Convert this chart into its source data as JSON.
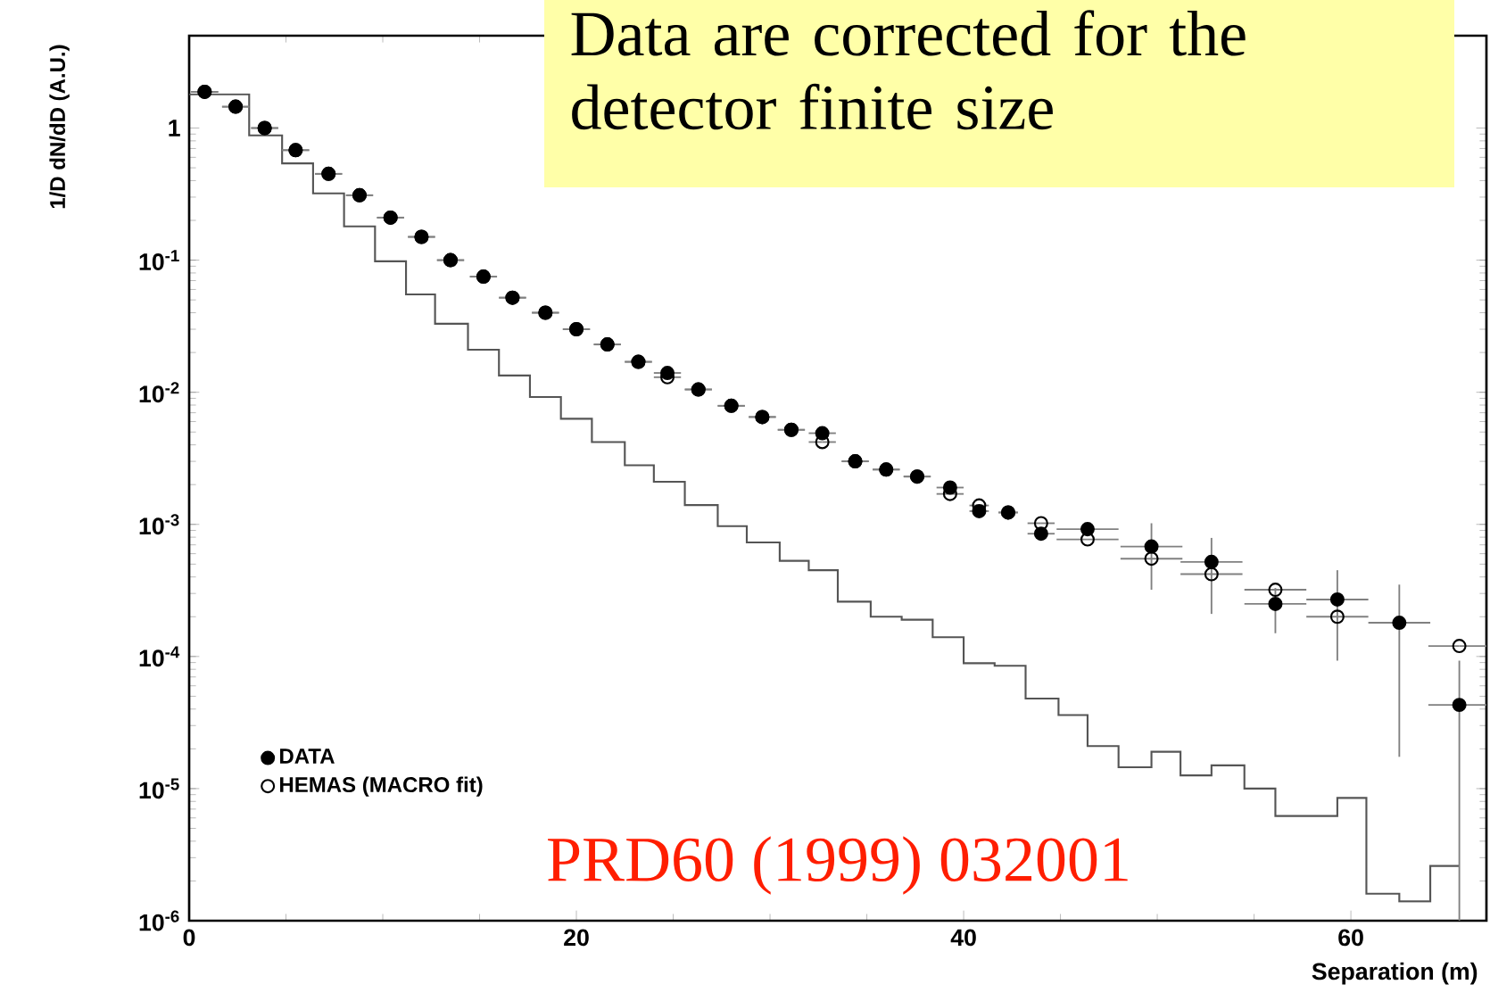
{
  "chart_data": {
    "type": "scatter",
    "xlabel": "Separation (m)",
    "ylabel": "1/D dN/dD (A.U.)",
    "annotations": [
      "Data are corrected for the detector finite size",
      "PRD60 (1999) 032001"
    ],
    "x": [
      0.8,
      2.4,
      3.9,
      5.5,
      7.2,
      8.8,
      10.4,
      12.0,
      13.5,
      15.2,
      16.7,
      18.4,
      20.0,
      21.6,
      23.2,
      24.7,
      26.3,
      28.0,
      29.6,
      31.1,
      32.7,
      34.4,
      36.0,
      37.6,
      39.3,
      40.8,
      42.3,
      44.0,
      46.4,
      49.7,
      52.8,
      56.1,
      59.3,
      62.5,
      65.6
    ],
    "series": [
      {
        "name": "DATA",
        "color": "#000000",
        "values": [
          1.88,
          1.45,
          1.0,
          0.68,
          0.45,
          0.31,
          0.21,
          0.15,
          0.1,
          0.075,
          0.052,
          0.04,
          0.03,
          0.023,
          0.017,
          0.014,
          0.0105,
          0.0079,
          0.0065,
          0.0052,
          0.0049,
          0.003,
          0.0026,
          0.0023,
          0.0019,
          0.00126,
          0.00123,
          0.00085,
          0.00092,
          0.00068,
          0.00052,
          0.00025,
          0.00027,
          0.00018,
          4.3e-05
        ],
        "errors": [
          null,
          null,
          null,
          null,
          null,
          null,
          null,
          null,
          null,
          null,
          null,
          null,
          null,
          null,
          null,
          null,
          null,
          null,
          null,
          null,
          null,
          null,
          null,
          null,
          null,
          null,
          null,
          null,
          null,
          [
            0.00032,
            0.00102
          ],
          [
            0.00021,
            0.00079
          ],
          [
            0.00015,
            0.00033
          ],
          [
            9.3e-05,
            0.00045
          ],
          [
            1.74e-05,
            0.00035
          ],
          [
            1e-06,
            9.3e-05
          ]
        ],
        "xerrors": [
          0.7,
          0.7,
          0.7,
          0.7,
          0.7,
          0.7,
          0.7,
          0.7,
          0.7,
          0.7,
          0.7,
          0.7,
          0.7,
          0.7,
          0.7,
          0.7,
          0.7,
          0.7,
          0.7,
          0.7,
          0.7,
          0.7,
          0.7,
          0.7,
          0.7,
          0.5,
          0.5,
          0.7,
          1.6,
          1.6,
          1.6,
          1.6,
          1.6,
          1.6,
          1.6
        ]
      },
      {
        "name": "HEMAS (MACRO fit)",
        "color": "#000000",
        "values": [
          1.88,
          1.45,
          1.0,
          0.68,
          0.45,
          0.31,
          0.21,
          0.15,
          0.1,
          0.075,
          0.052,
          0.04,
          0.03,
          0.023,
          0.017,
          0.013,
          0.0105,
          0.0079,
          0.0065,
          0.0052,
          0.0042,
          0.003,
          0.0026,
          0.0023,
          0.0017,
          0.00139,
          0.00123,
          0.00102,
          0.00077,
          0.00055,
          0.00042,
          0.00032,
          0.0002,
          null,
          0.00012
        ],
        "xerrors": [
          0.7,
          0.7,
          0.7,
          0.7,
          0.7,
          0.7,
          0.7,
          0.7,
          0.7,
          0.7,
          0.7,
          0.7,
          0.7,
          0.7,
          0.7,
          0.7,
          0.7,
          0.7,
          0.7,
          0.7,
          0.7,
          0.7,
          0.7,
          0.7,
          0.7,
          0.5,
          0.5,
          0.7,
          1.6,
          1.6,
          1.6,
          1.6,
          1.6,
          null,
          1.6
        ]
      },
      {
        "type": "histogram",
        "color": "#555555",
        "bins": [
          0,
          3.1,
          4.8,
          6.4,
          8.0,
          9.6,
          11.2,
          12.7,
          14.4,
          16.0,
          17.6,
          19.2,
          20.8,
          22.5,
          24.0,
          25.6,
          27.3,
          28.8,
          30.5,
          32.0,
          33.5,
          35.2,
          36.8,
          38.4,
          40.0,
          41.6,
          43.2,
          44.9,
          46.4,
          48.0,
          49.7,
          51.2,
          52.8,
          54.5,
          56.1,
          59.3,
          60.8,
          62.5,
          64.1,
          65.6
        ],
        "values": [
          1.8,
          0.88,
          0.54,
          0.32,
          0.18,
          0.098,
          0.055,
          0.033,
          0.021,
          0.0134,
          0.0092,
          0.0063,
          0.0042,
          0.0028,
          0.0021,
          0.0014,
          0.00097,
          0.00073,
          0.00053,
          0.00045,
          0.00026,
          0.0002,
          0.00019,
          0.00014,
          8.9e-05,
          8.5e-05,
          4.8e-05,
          3.6e-05,
          2.1e-05,
          1.45e-05,
          1.9e-05,
          1.26e-05,
          1.5e-05,
          1e-05,
          6.2e-06,
          8.5e-06,
          1.6e-06,
          1.4e-06,
          2.6e-06
        ]
      }
    ],
    "xlim": [
      0,
      67
    ],
    "ylim": [
      1e-06,
      5
    ],
    "log": "y",
    "xticks": [
      0,
      20,
      40,
      60
    ],
    "yticks": [
      {
        "value": 1e-06,
        "label": "10$^{-6}$"
      },
      {
        "value": 1e-05,
        "label": "10$^{-5}$"
      },
      {
        "value": 0.0001,
        "label": "10$^{-4}$"
      },
      {
        "value": 0.001,
        "label": "10$^{-3}$"
      },
      {
        "value": 0.01,
        "label": "10$^{-2}$"
      },
      {
        "value": 0.1,
        "label": "10$^{-1}$"
      },
      1
    ],
    "marker": "circle",
    "legend": "bottom left"
  }
}
